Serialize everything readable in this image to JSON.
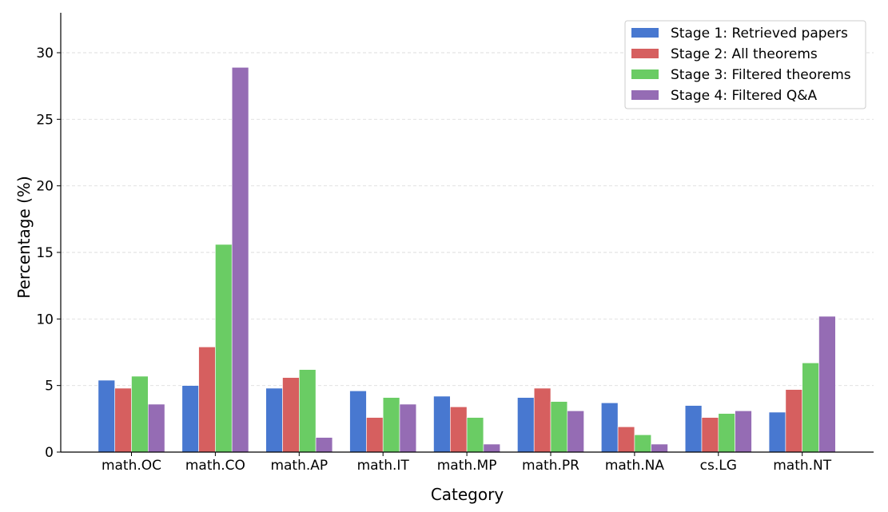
{
  "chart_data": {
    "type": "bar",
    "title": "",
    "xlabel": "Category",
    "ylabel": "Percentage (%)",
    "categories": [
      "math.OC",
      "math.CO",
      "math.AP",
      "math.IT",
      "math.MP",
      "math.PR",
      "math.NA",
      "cs.LG",
      "math.NT"
    ],
    "series": [
      {
        "name": "Stage 1: Retrieved papers",
        "color": "#4878d0",
        "values": [
          5.4,
          5.0,
          4.8,
          4.6,
          4.2,
          4.1,
          3.7,
          3.5,
          3.0
        ]
      },
      {
        "name": "Stage 2: All theorems",
        "color": "#d65f5f",
        "values": [
          4.8,
          7.9,
          5.6,
          2.6,
          3.4,
          4.8,
          1.9,
          2.6,
          4.7
        ]
      },
      {
        "name": "Stage 3: Filtered theorems",
        "color": "#6acc64",
        "values": [
          5.7,
          15.6,
          6.2,
          4.1,
          2.6,
          3.8,
          1.3,
          2.9,
          6.7
        ]
      },
      {
        "name": "Stage 4: Filtered Q&A",
        "color": "#956cb4",
        "values": [
          3.6,
          28.9,
          1.1,
          3.6,
          0.6,
          3.1,
          0.6,
          3.1,
          10.2
        ]
      }
    ],
    "ylim": [
      0,
      33
    ],
    "yticks": [
      0,
      5,
      10,
      15,
      20,
      25,
      30
    ],
    "grid": true,
    "legend_position": "top-right"
  }
}
